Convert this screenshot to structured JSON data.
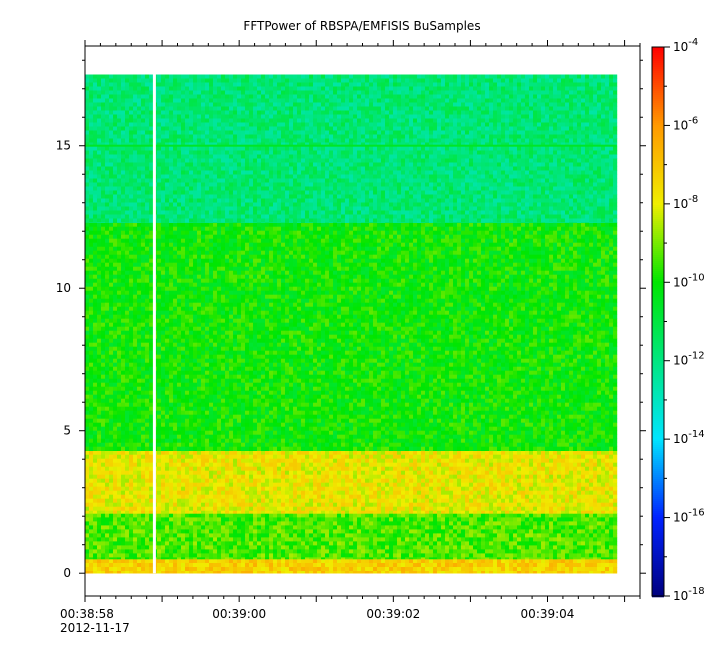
{
  "chart_data": {
    "type": "heatmap",
    "title": "FFTPower of RBSPA/EMFISIS  BuSamples",
    "xlabel": "",
    "ylabel": "",
    "date_label": "2012-11-17",
    "x_ticks": [
      "00:38:58",
      "00:39:00",
      "00:39:02",
      "00:39:04"
    ],
    "xlim": [
      "00:38:58",
      "00:39:05.2"
    ],
    "data_x_range": [
      "00:38:58",
      "00:39:04.9"
    ],
    "gap_time": "00:38:58.9",
    "y_ticks": [
      0,
      5,
      10,
      15
    ],
    "ylim": [
      -0.8,
      18.5
    ],
    "data_y_range": [
      0,
      17.5
    ],
    "colorbar": {
      "scale": "log",
      "range": [
        1e-18,
        0.0001
      ],
      "tick_exponents": [
        -4,
        -6,
        -8,
        -10,
        -12,
        -14,
        -16,
        -18
      ],
      "tick_base": "10"
    },
    "bands": [
      {
        "y": [
          0,
          0.5
        ],
        "log10_power": -7.3
      },
      {
        "y": [
          0.5,
          2.1
        ],
        "log10_power": -9.4
      },
      {
        "y": [
          2.1,
          4.3
        ],
        "log10_power": -7.9
      },
      {
        "y": [
          4.3,
          12.3
        ],
        "log10_power": -10.0
      },
      {
        "y": [
          12.3,
          17.5
        ],
        "log10_power": -11.8
      }
    ],
    "lines": [
      {
        "y": 15.0,
        "log10_power": -10.6
      }
    ],
    "colors": {
      "-18": "#00007f",
      "-16": "#0022ff",
      "-14": "#00e5ff",
      "-12": "#00e680",
      "-10": "#00e600",
      "-8": "#f0ee00",
      "-6": "#ff9900",
      "-4": "#ff0000"
    }
  }
}
